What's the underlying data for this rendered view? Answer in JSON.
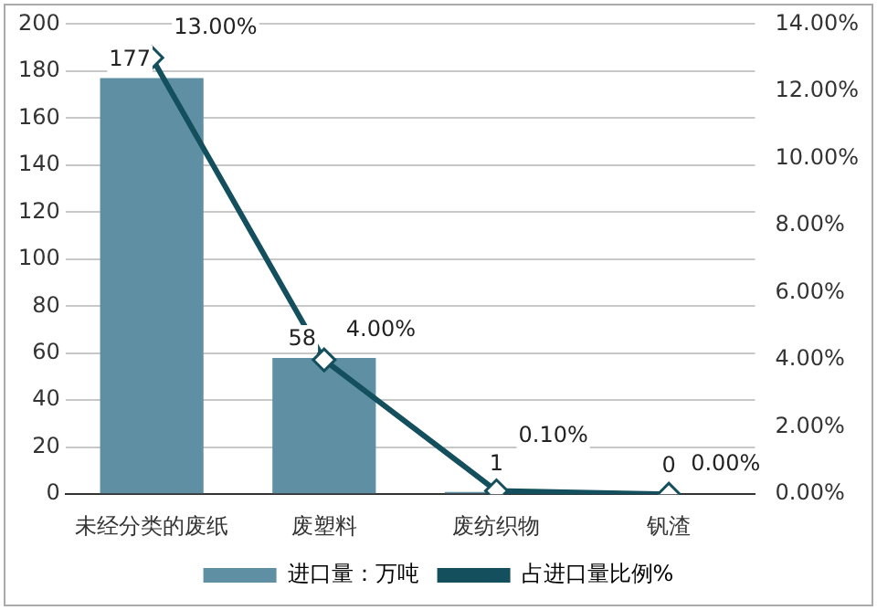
{
  "chart_data": {
    "type": "bar",
    "categories": [
      "未经分类的废纸",
      "废塑料",
      "废纺织物",
      "钒渣"
    ],
    "series": [
      {
        "name": "进口量：万吨",
        "color": "#5e8fa3",
        "values": [
          177,
          58,
          1,
          0
        ],
        "value_labels": [
          "177",
          "58",
          "1",
          "0"
        ]
      },
      {
        "name": "占进口量比例%",
        "type": "line",
        "axis": "y2",
        "color": "#134f5c",
        "marker": "diamond",
        "values": [
          13,
          4,
          0.1,
          0
        ],
        "value_labels": [
          "13.00%",
          "4.00%",
          "0.10%",
          "0.00%"
        ]
      }
    ],
    "ylim": [
      0,
      200
    ],
    "yticks": [
      0,
      20,
      40,
      60,
      80,
      100,
      120,
      140,
      160,
      180,
      200
    ],
    "y2lim": [
      0,
      14
    ],
    "y2ticks": [
      {
        "value": 0,
        "label": "0.00%"
      },
      {
        "value": 2,
        "label": "2.00%"
      },
      {
        "value": 4,
        "label": "4.00%"
      },
      {
        "value": 6,
        "label": "6.00%"
      },
      {
        "value": 8,
        "label": "8.00%"
      },
      {
        "value": 10,
        "label": "10.00%"
      },
      {
        "value": 12,
        "label": "12.00%"
      },
      {
        "value": 14,
        "label": "14.00%"
      }
    ],
    "grid": "y",
    "legend": "bottom"
  }
}
